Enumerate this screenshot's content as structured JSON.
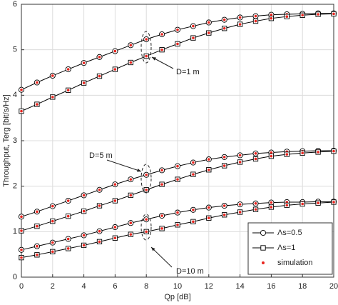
{
  "chart_data": {
    "type": "line",
    "x_label": "Qp [dB]",
    "y_label": "Throughput, Terg [bit/s/Hz]",
    "x": [
      0,
      1,
      2,
      3,
      4,
      5,
      6,
      7,
      8,
      9,
      10,
      11,
      12,
      13,
      14,
      15,
      16,
      17,
      18,
      19,
      20
    ],
    "xlim": [
      0,
      20
    ],
    "xticks": [
      0,
      2,
      4,
      6,
      8,
      10,
      12,
      14,
      16,
      18,
      20
    ],
    "ylim": [
      0,
      6
    ],
    "yticks": [
      0,
      1,
      2,
      3,
      4,
      5,
      6
    ],
    "grid": true,
    "legend_position": "lower right",
    "series": [
      {
        "name": "Λs=0.5",
        "marker": "circle",
        "color": "#000000",
        "values": [
          4.12,
          4.28,
          4.43,
          4.57,
          4.71,
          4.84,
          4.97,
          5.1,
          5.23,
          5.34,
          5.44,
          5.52,
          5.6,
          5.66,
          5.71,
          5.74,
          5.77,
          5.78,
          5.79,
          5.8,
          5.8
        ]
      },
      {
        "name": "Λs=1",
        "marker": "square",
        "color": "#000000",
        "values": [
          3.65,
          3.8,
          3.96,
          4.11,
          4.27,
          4.42,
          4.57,
          4.72,
          4.86,
          5.0,
          5.13,
          5.26,
          5.37,
          5.47,
          5.56,
          5.63,
          5.69,
          5.73,
          5.76,
          5.78,
          5.79
        ]
      },
      {
        "name": "Λs=0.5",
        "marker": "circle",
        "color": "#000000",
        "values": [
          1.33,
          1.44,
          1.56,
          1.68,
          1.8,
          1.92,
          2.04,
          2.15,
          2.25,
          2.35,
          2.44,
          2.52,
          2.59,
          2.64,
          2.68,
          2.72,
          2.74,
          2.76,
          2.77,
          2.78,
          2.78
        ]
      },
      {
        "name": "Λs=1",
        "marker": "square",
        "color": "#000000",
        "values": [
          1.02,
          1.12,
          1.23,
          1.34,
          1.45,
          1.57,
          1.68,
          1.8,
          1.92,
          2.04,
          2.15,
          2.26,
          2.36,
          2.45,
          2.53,
          2.6,
          2.66,
          2.7,
          2.73,
          2.75,
          2.77
        ]
      },
      {
        "name": "Λs=0.5",
        "marker": "circle",
        "color": "#000000",
        "values": [
          0.6,
          0.68,
          0.76,
          0.84,
          0.92,
          1.01,
          1.1,
          1.19,
          1.27,
          1.35,
          1.42,
          1.48,
          1.53,
          1.57,
          1.6,
          1.62,
          1.64,
          1.65,
          1.65,
          1.66,
          1.66
        ]
      },
      {
        "name": "Λs=1",
        "marker": "square",
        "color": "#000000",
        "values": [
          0.43,
          0.49,
          0.56,
          0.63,
          0.7,
          0.78,
          0.86,
          0.94,
          1.0,
          1.07,
          1.15,
          1.22,
          1.3,
          1.37,
          1.43,
          1.49,
          1.54,
          1.58,
          1.61,
          1.63,
          1.65
        ]
      }
    ],
    "simulation_label": "simulation",
    "simulation_color": "#e8251f",
    "annotations": [
      "D=1 m",
      "D=5 m",
      "D=10 m"
    ]
  }
}
